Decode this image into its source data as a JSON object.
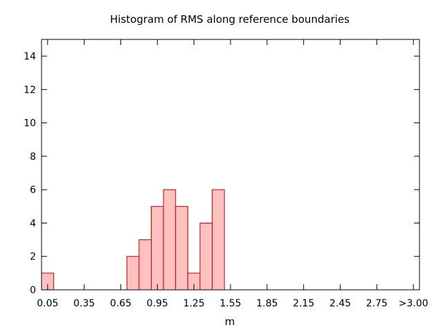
{
  "chart_data": {
    "type": "bar",
    "title": "Histogram of RMS along reference boundaries",
    "xlabel": "m",
    "ylabel": "",
    "xlim": [
      0.0,
      3.1
    ],
    "ylim": [
      0,
      15
    ],
    "y_ticks": [
      0,
      2,
      4,
      6,
      8,
      10,
      12,
      14
    ],
    "x_ticks": [
      {
        "value": 0.05,
        "label": "0.05"
      },
      {
        "value": 0.35,
        "label": "0.35"
      },
      {
        "value": 0.65,
        "label": "0.65"
      },
      {
        "value": 0.95,
        "label": "0.95"
      },
      {
        "value": 1.25,
        "label": "1.25"
      },
      {
        "value": 1.55,
        "label": "1.55"
      },
      {
        "value": 1.85,
        "label": "1.85"
      },
      {
        "value": 2.15,
        "label": "2.15"
      },
      {
        "value": 2.45,
        "label": "2.45"
      },
      {
        "value": 2.75,
        "label": "2.75"
      },
      {
        "value": 3.05,
        "label": ">3.00"
      }
    ],
    "bin_width": 0.1,
    "bins": [
      {
        "x": 0.05,
        "count": 1
      },
      {
        "x": 0.75,
        "count": 2
      },
      {
        "x": 0.85,
        "count": 3
      },
      {
        "x": 0.95,
        "count": 5
      },
      {
        "x": 1.05,
        "count": 6
      },
      {
        "x": 1.15,
        "count": 5
      },
      {
        "x": 1.25,
        "count": 1
      },
      {
        "x": 1.35,
        "count": 4
      },
      {
        "x": 1.45,
        "count": 6
      }
    ],
    "colors": {
      "bar_fill": "#ffc0c0",
      "bar_stroke": "#cc0000",
      "axis": "#000000"
    },
    "grid": false,
    "legend": "none"
  }
}
